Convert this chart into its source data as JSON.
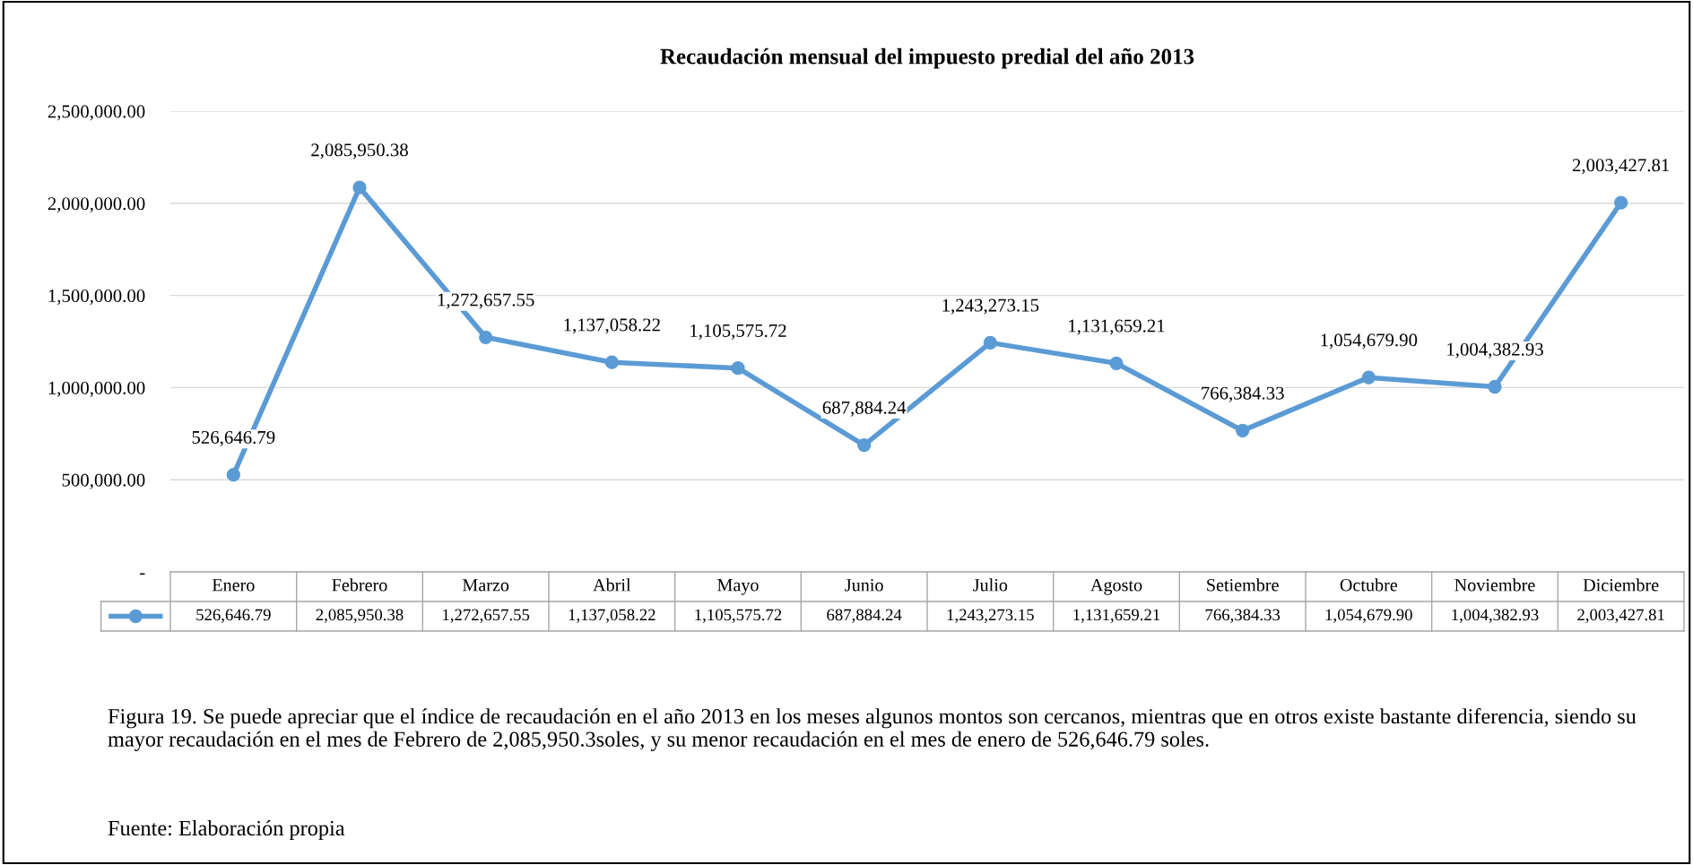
{
  "chart_data": {
    "type": "line",
    "title": "Recaudación mensual del impuesto predial del año 2013",
    "categories": [
      "Enero",
      "Febrero",
      "Marzo",
      "Abril",
      "Mayo",
      "Junio",
      "Julio",
      "Agosto",
      "Setiembre",
      "Octubre",
      "Noviembre",
      "Diciembre"
    ],
    "series": [
      {
        "color": "#5b9bd5",
        "values": [
          526646.79,
          2085950.38,
          1272657.55,
          1137058.22,
          1105575.72,
          687884.24,
          1243273.15,
          1131659.21,
          766384.33,
          1054679.9,
          1004382.93,
          2003427.81
        ],
        "value_labels": [
          "526,646.79",
          "2,085,950.38",
          "1,272,657.55",
          "1,137,058.22",
          "1,105,575.72",
          "687,884.24",
          "1,243,273.15",
          "1,131,659.21",
          "766,384.33",
          "1,054,679.90",
          "1,004,382.93",
          "2,003,427.81"
        ]
      }
    ],
    "ylim": [
      0,
      2500000
    ],
    "yticks": [
      {
        "value": 0,
        "label": "-"
      },
      {
        "value": 500000,
        "label": "500,000.00"
      },
      {
        "value": 1000000,
        "label": "1,000,000.00"
      },
      {
        "value": 1500000,
        "label": "1,500,000.00"
      },
      {
        "value": 2000000,
        "label": "2,000,000.00"
      },
      {
        "value": 2500000,
        "label": "2,500,000.00"
      }
    ],
    "grid": "y",
    "marker": "circle",
    "line_style": "solid",
    "annotations": [
      "Figura 19. Se puede apreciar que el índice de recaudación en el año 2013 en los meses algunos montos son cercanos, mientras que en otros existe bastante diferencia, siendo su mayor recaudación en el mes de Febrero de 2,085,950.3soles, y su menor recaudación en el mes de enero de 526,646.79 soles.",
      "Fuente: Elaboración propia"
    ]
  }
}
